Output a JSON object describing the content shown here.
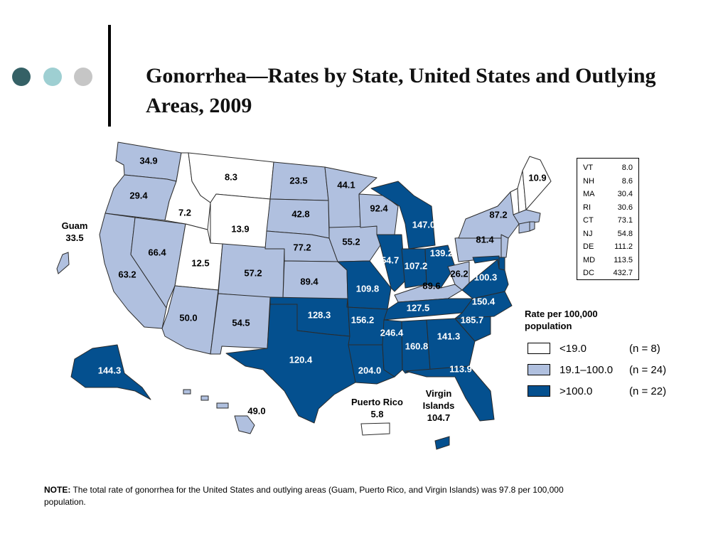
{
  "title": "Gonorrhea—Rates by State, United States and Outlying Areas, 2009",
  "colors": {
    "low": "#ffffff",
    "mid": "#b0c0df",
    "high": "#04508f",
    "border": "#2b2b2b",
    "dot1": "#356166",
    "dot2": "#9ecfd2",
    "dot3": "#c6c6c6"
  },
  "states": {
    "WA": {
      "value": "34.9",
      "cls": "mid"
    },
    "OR": {
      "value": "29.4",
      "cls": "mid"
    },
    "CA": {
      "value": "63.2",
      "cls": "mid"
    },
    "NV": {
      "value": "66.4",
      "cls": "mid"
    },
    "ID": {
      "value": "7.2",
      "cls": "low"
    },
    "MT": {
      "value": "8.3",
      "cls": "low"
    },
    "WY": {
      "value": "13.9",
      "cls": "low"
    },
    "UT": {
      "value": "12.5",
      "cls": "low"
    },
    "AZ": {
      "value": "50.0",
      "cls": "mid"
    },
    "CO": {
      "value": "57.2",
      "cls": "mid"
    },
    "NM": {
      "value": "54.5",
      "cls": "mid"
    },
    "ND": {
      "value": "23.5",
      "cls": "mid"
    },
    "SD": {
      "value": "42.8",
      "cls": "mid"
    },
    "NE": {
      "value": "77.2",
      "cls": "mid"
    },
    "KS": {
      "value": "89.4",
      "cls": "mid"
    },
    "OK": {
      "value": "128.3",
      "cls": "high"
    },
    "TX": {
      "value": "120.4",
      "cls": "high"
    },
    "MN": {
      "value": "44.1",
      "cls": "mid"
    },
    "IA": {
      "value": "55.2",
      "cls": "mid"
    },
    "MO": {
      "value": "109.8",
      "cls": "high"
    },
    "AR": {
      "value": "156.2",
      "cls": "high"
    },
    "LA": {
      "value": "204.0",
      "cls": "high"
    },
    "WI": {
      "value": "92.4",
      "cls": "mid"
    },
    "IL": {
      "value": "154.7",
      "cls": "high"
    },
    "MI": {
      "value": "147.0",
      "cls": "high"
    },
    "IN": {
      "value": "107.2",
      "cls": "high"
    },
    "OH": {
      "value": "139.2",
      "cls": "high"
    },
    "KY": {
      "value": "89.6",
      "cls": "mid"
    },
    "TN": {
      "value": "127.5",
      "cls": "high"
    },
    "MS": {
      "value": "246.4",
      "cls": "high"
    },
    "AL": {
      "value": "160.8",
      "cls": "high"
    },
    "GA": {
      "value": "141.3",
      "cls": "high"
    },
    "FL": {
      "value": "113.9",
      "cls": "high"
    },
    "SC": {
      "value": "185.7",
      "cls": "high"
    },
    "NC": {
      "value": "150.4",
      "cls": "high"
    },
    "VA": {
      "value": "100.3",
      "cls": "high"
    },
    "WV": {
      "value": "26.2",
      "cls": "mid"
    },
    "PA": {
      "value": "81.4",
      "cls": "mid"
    },
    "NY": {
      "value": "87.2",
      "cls": "mid"
    },
    "ME": {
      "value": "10.9",
      "cls": "low"
    },
    "AK": {
      "value": "144.3",
      "cls": "high"
    },
    "HI": {
      "value": "49.0",
      "cls": "mid"
    }
  },
  "outlying": {
    "guam": {
      "name": "Guam",
      "value": "33.5"
    },
    "puerto_rico": {
      "name": "Puerto Rico",
      "value": "5.8"
    },
    "virgin_islands": {
      "name": "Virgin Islands",
      "value": "104.7"
    }
  },
  "northeast_table": [
    {
      "state": "VT",
      "value": "8.0"
    },
    {
      "state": "NH",
      "value": "8.6"
    },
    {
      "state": "MA",
      "value": "30.4"
    },
    {
      "state": "RI",
      "value": "30.6"
    },
    {
      "state": "CT",
      "value": "73.1"
    },
    {
      "state": "NJ",
      "value": "54.8"
    },
    {
      "state": "DE",
      "value": "111.2"
    },
    {
      "state": "MD",
      "value": "113.5"
    },
    {
      "state": "DC",
      "value": "432.7"
    }
  ],
  "legend": {
    "title": "Rate per 100,000 population",
    "items": [
      {
        "range": "<19.0",
        "count": "(n = 8)",
        "cls": "low"
      },
      {
        "range": "19.1–100.0",
        "count": "(n = 24)",
        "cls": "mid"
      },
      {
        "range": ">100.0",
        "count": "(n = 22)",
        "cls": "high"
      }
    ]
  },
  "note": {
    "label": "NOTE:",
    "text": "The total rate of gonorrhea for the United States and outlying areas (Guam, Puerto Rico, and Virgin Islands) was 97.8 per 100,000 population."
  }
}
